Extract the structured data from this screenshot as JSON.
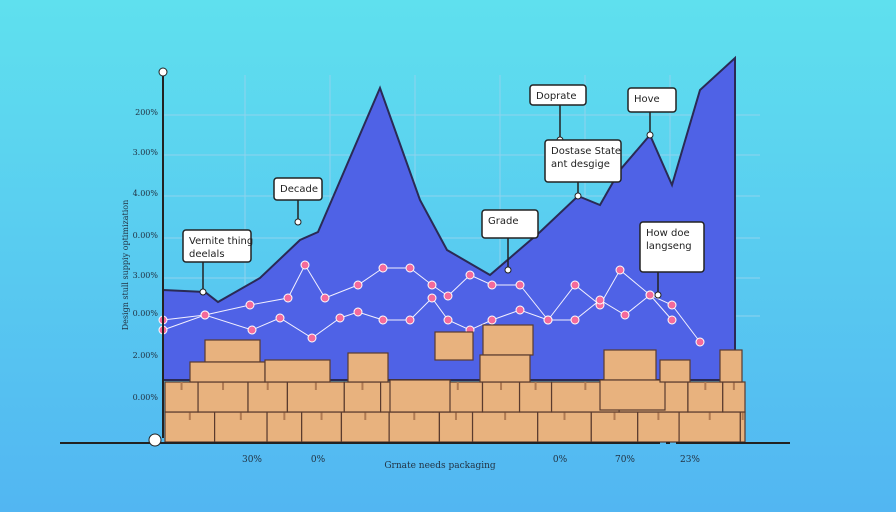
{
  "axis": {
    "y_title": "Design stull suppiy optimization",
    "y_labels": [
      "200%",
      "3.00%",
      "4.00%",
      "0.00%",
      "3.00%",
      "0.00%",
      "2.00%",
      "0.00%"
    ],
    "x_labels": [
      "30%",
      "0%",
      "0%",
      "70%",
      "23%"
    ],
    "x_title": "Grnate needs packaging"
  },
  "callouts": [
    {
      "text": "Vernite thing deelals"
    },
    {
      "text": "Decade"
    },
    {
      "text": "Grade"
    },
    {
      "text": "Doprate"
    },
    {
      "text": "Dostase State ant desgige"
    },
    {
      "text": "Hove"
    },
    {
      "text": "How doe langseng"
    }
  ]
}
